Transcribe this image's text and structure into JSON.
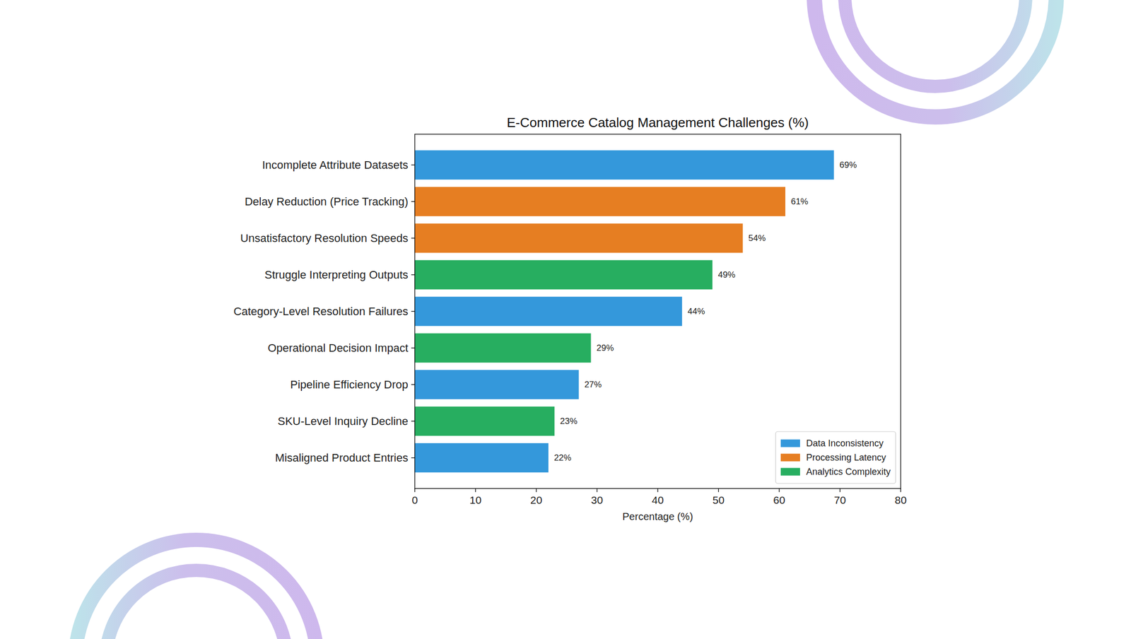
{
  "chart_data": {
    "type": "bar",
    "orientation": "horizontal",
    "title": "E-Commerce Catalog Management Challenges (%)",
    "x_label": "Percentage (%)",
    "categories": [
      "Incomplete Attribute Datasets",
      "Delay Reduction (Price Tracking)",
      "Unsatisfactory Resolution Speeds",
      "Struggle Interpreting Outputs",
      "Category-Level Resolution Failures",
      "Operational Decision Impact",
      "Pipeline Efficiency Drop",
      "SKU-Level Inquiry Decline",
      "Misaligned Product Entries"
    ],
    "series": [
      {
        "name": "Data Inconsistency",
        "color": "#3498db",
        "values": [
          69,
          null,
          null,
          null,
          44,
          null,
          27,
          null,
          22
        ],
        "value_labels": [
          "69%",
          null,
          null,
          null,
          "44%",
          null,
          "27%",
          null,
          "22%"
        ]
      },
      {
        "name": "Processing Latency",
        "color": "#e67e22",
        "values": [
          null,
          61,
          54,
          null,
          null,
          null,
          null,
          null,
          null
        ],
        "value_labels": [
          null,
          "61%",
          "54%",
          null,
          null,
          null,
          null,
          null,
          null
        ]
      },
      {
        "name": "Analytics Complexity",
        "color": "#27ae60",
        "values": [
          null,
          null,
          null,
          49,
          null,
          29,
          null,
          23,
          null
        ],
        "value_labels": [
          null,
          null,
          null,
          "49%",
          null,
          "29%",
          null,
          "23%",
          null
        ]
      }
    ],
    "xlim": [
      0,
      80
    ],
    "xticks": [
      0,
      10,
      20,
      30,
      40,
      50,
      60,
      70,
      80
    ],
    "grid": false,
    "legend": "lower right",
    "data_labels": true
  }
}
